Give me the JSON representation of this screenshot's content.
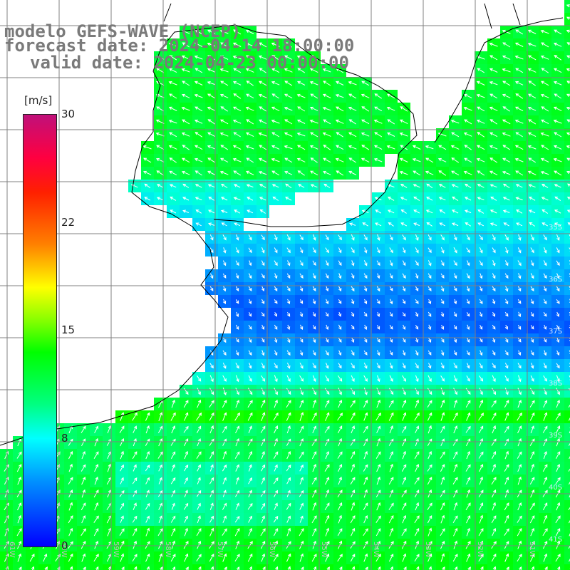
{
  "header": {
    "line1": "modelo GEFS-WAVE (NCEP)",
    "line2": "forecast date: 2024-04-14 18:00:00",
    "line3": "valid date: 2024-04-23 00:00:00"
  },
  "colorbar": {
    "unit": "[m/s]",
    "ticks": [
      "30",
      "22",
      "15",
      "8",
      "0"
    ],
    "colors": [
      "#0000ff",
      "#0090ff",
      "#00ffff",
      "#00ff00",
      "#ffff00",
      "#ff8000",
      "#ff0000",
      "#c0107a"
    ]
  },
  "map": {
    "lat_labels": [
      "35S",
      "36S",
      "37S",
      "38S",
      "39S",
      "40S",
      "41S"
    ],
    "lon_labels": [
      "61W",
      "60W",
      "59W",
      "58W",
      "57W",
      "56W",
      "55W",
      "54W",
      "53W",
      "52W",
      "51W"
    ]
  },
  "colors": {
    "title": "#7a7a7a",
    "grid": "#808080",
    "coast": "#000000",
    "arrow": "#ffffff"
  }
}
